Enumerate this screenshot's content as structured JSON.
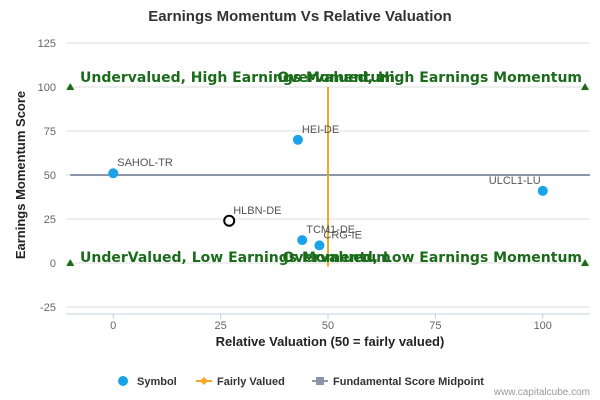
{
  "chart_data": {
    "type": "scatter",
    "title": "Earnings Momentum Vs Relative Valuation",
    "xlabel": "Relative Valuation (50 = fairly valued)",
    "ylabel": "Earnings Momentum Score",
    "xlim": [
      -11,
      111
    ],
    "ylim": [
      -25,
      125
    ],
    "x_ticks": [
      0,
      25,
      50,
      75,
      100
    ],
    "y_ticks": [
      -25,
      0,
      25,
      50,
      75,
      100,
      125
    ],
    "points": [
      {
        "label": "HEI-DE",
        "x": 43,
        "y": 70,
        "style": "filled"
      },
      {
        "label": "SAHOL-TR",
        "x": 0,
        "y": 51,
        "style": "filled"
      },
      {
        "label": "ULCL1-LU",
        "x": 100,
        "y": 41,
        "style": "filled"
      },
      {
        "label": "HLBN-DE",
        "x": 27,
        "y": 24,
        "style": "highlight"
      },
      {
        "label": "TCM1-DE",
        "x": 44,
        "y": 13,
        "style": "filled"
      },
      {
        "label": "CRG-IE",
        "x": 48,
        "y": 10,
        "style": "filled"
      }
    ],
    "fairly_valued_x": 50,
    "fairly_valued_y_range": [
      -2,
      100
    ],
    "midpoint_y": 50,
    "quadrant_labels": [
      {
        "text": "Undervalued, High Earnings Momentum",
        "position": "top-left"
      },
      {
        "text": "Overvalued, High Earnings Momentum",
        "position": "top-right"
      },
      {
        "text": "UnderValued, Low Earnings Momentum",
        "position": "bottom-left"
      },
      {
        "text": "Overvalued, Low Earnings Momentum",
        "position": "bottom-right"
      }
    ],
    "legend": {
      "placement": "bottom-center",
      "items": [
        {
          "name": "Symbol",
          "marker": "circle"
        },
        {
          "name": "Fairly Valued",
          "marker": "line-diamond"
        },
        {
          "name": "Fundamental Score Midpoint",
          "marker": "line-square"
        }
      ]
    },
    "credit": "www.capitalcube.com",
    "colors": {
      "point": "#1aa3e8",
      "highlight_stroke": "#000000",
      "fairly_valued": "#f5a623",
      "midpoint": "#8896a8",
      "quadrant_text": "#1a6b1a",
      "triangle": "#1a6b1a",
      "grid": "#dddddd"
    }
  }
}
